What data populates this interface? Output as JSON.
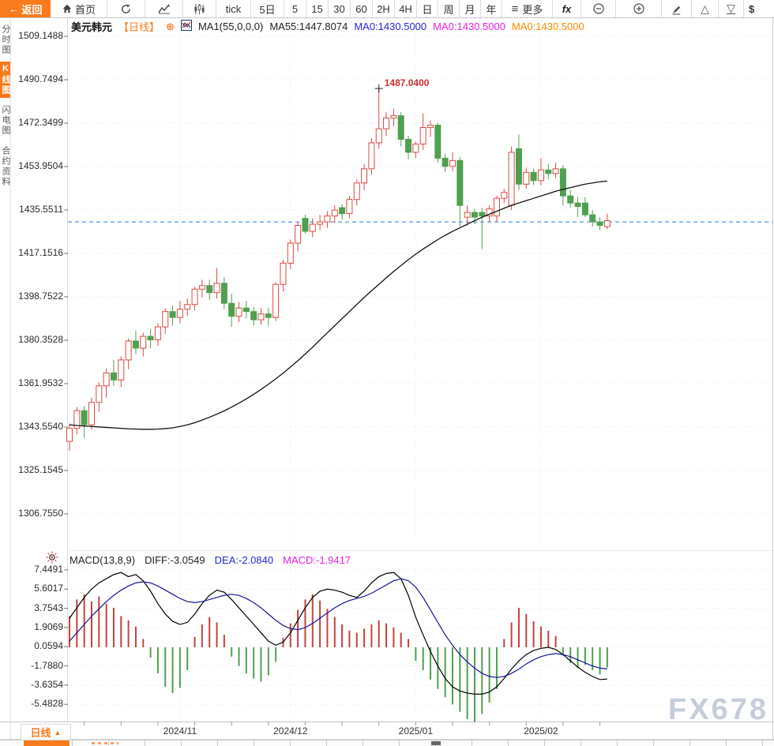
{
  "toolbar": {
    "back": "返回",
    "home": "首页",
    "tick": "tick",
    "d5": "5日",
    "m5": "5",
    "m15": "15",
    "m30": "30",
    "m60": "60",
    "h2": "2H",
    "h4": "4H",
    "day": "日",
    "week": "周",
    "month": "月",
    "year": "年",
    "more": "更多",
    "fx": "fx",
    "dollar": "$"
  },
  "sidebar": {
    "tabs": [
      {
        "label": "分时图",
        "active": false
      },
      {
        "label": "K线图",
        "active": true
      },
      {
        "label": "闪电图",
        "active": false
      },
      {
        "label": "合约资料",
        "active": false
      }
    ]
  },
  "header": {
    "symbol": "美元韩元",
    "period_tag": "【日线】",
    "plus_icon": "⊕",
    "ma1": "MA1(55,0,0,0)",
    "ma55": "MA55:1447.8074",
    "ma0_1": "MA0:1430.5000",
    "ma0_2": "MA0:1430.5000",
    "ma0_3": "MA0:1430.5000"
  },
  "macd_header": {
    "title": "MACD(13,8,9)",
    "diff": "DIFF:-3.0549",
    "dea": "DEA:-2.0840",
    "macd": "MACD:-1.9417"
  },
  "bottom": {
    "period": "日线",
    "arrow": "▲",
    "watermark": "FX678"
  },
  "colors": {
    "accent_orange": "#f87b1e",
    "up_red": "#db4a42",
    "down_green": "#4fa04f",
    "price_line_blue": "#1e82e6",
    "dea_blue": "#16169a",
    "macd_magenta": "#e221e2",
    "ma0_orange": "#ff8a00"
  },
  "chart_data": {
    "type": "candlestick+macd",
    "symbol": "美元韩元",
    "period": "日线",
    "y_axis_labels": [
      "1509.1488",
      "1490.7494",
      "1472.3499",
      "1453.9504",
      "1435.5511",
      "1417.1516",
      "1398.7522",
      "1380.3528",
      "1361.9532",
      "1343.5540",
      "1325.1545",
      "1306.7550"
    ],
    "x_axis_labels": [
      {
        "label": "2024/11",
        "index": 15
      },
      {
        "label": "2024/12",
        "index": 30
      },
      {
        "label": "2025/01",
        "index": 47
      },
      {
        "label": "2025/02",
        "index": 64
      }
    ],
    "current_price_line": 1430.5,
    "annotation": {
      "text": "1487.0400",
      "index": 42,
      "price": 1487.04
    },
    "candles": [
      [
        1337.5,
        1345,
        1333.5,
        1343
      ],
      [
        1343,
        1352,
        1340.5,
        1350.5
      ],
      [
        1350.5,
        1352.5,
        1339,
        1344.5
      ],
      [
        1344.5,
        1356,
        1342.5,
        1354
      ],
      [
        1354,
        1362.5,
        1350,
        1361
      ],
      [
        1361,
        1368.5,
        1356,
        1366.5
      ],
      [
        1366.5,
        1372,
        1361,
        1363.5
      ],
      [
        1363.5,
        1373.5,
        1360.5,
        1372
      ],
      [
        1372,
        1381,
        1368,
        1380
      ],
      [
        1380,
        1384.5,
        1374.5,
        1377
      ],
      [
        1377,
        1383.5,
        1373.5,
        1382
      ],
      [
        1382,
        1385,
        1377,
        1380.5
      ],
      [
        1380.5,
        1387.5,
        1378,
        1386
      ],
      [
        1386,
        1394,
        1383,
        1392.5
      ],
      [
        1392.5,
        1395,
        1386.5,
        1390
      ],
      [
        1390,
        1397,
        1387.5,
        1393.5
      ],
      [
        1393.5,
        1398,
        1390.5,
        1395.5
      ],
      [
        1395.5,
        1403,
        1393,
        1402
      ],
      [
        1402,
        1406,
        1398.5,
        1403.5
      ],
      [
        1403.5,
        1406,
        1397.5,
        1400.5
      ],
      [
        1400.5,
        1411,
        1398,
        1404.5
      ],
      [
        1404.5,
        1407,
        1393.5,
        1396
      ],
      [
        1396,
        1400,
        1386,
        1390.5
      ],
      [
        1390.5,
        1396.5,
        1388,
        1394
      ],
      [
        1394,
        1397,
        1389.5,
        1392.5
      ],
      [
        1392.5,
        1394.5,
        1386.5,
        1389
      ],
      [
        1389,
        1394,
        1387,
        1391.5
      ],
      [
        1391.5,
        1394,
        1386.5,
        1390
      ],
      [
        1390,
        1405,
        1388.5,
        1404
      ],
      [
        1404,
        1414.5,
        1401,
        1413
      ],
      [
        1413,
        1423,
        1410.5,
        1421.5
      ],
      [
        1421.5,
        1430.5,
        1418,
        1429
      ],
      [
        1432,
        1433.5,
        1425.5,
        1426.5
      ],
      [
        1426.5,
        1432,
        1424,
        1429.5
      ],
      [
        1429.5,
        1433.5,
        1427,
        1430.5
      ],
      [
        1430.5,
        1435,
        1428,
        1433
      ],
      [
        1433,
        1437.5,
        1430,
        1435.5
      ],
      [
        1436.5,
        1438,
        1431.5,
        1434
      ],
      [
        1434,
        1441.5,
        1432,
        1440
      ],
      [
        1440,
        1448.5,
        1437.5,
        1447
      ],
      [
        1447,
        1455,
        1444,
        1453
      ],
      [
        1453,
        1466,
        1450.5,
        1464
      ],
      [
        1464,
        1487.04,
        1461.5,
        1470
      ],
      [
        1470,
        1477,
        1467,
        1474.5
      ],
      [
        1474.5,
        1478.5,
        1471,
        1475.5
      ],
      [
        1475.5,
        1477,
        1462.5,
        1465.5
      ],
      [
        1465.5,
        1467,
        1457,
        1460
      ],
      [
        1460,
        1464.5,
        1457.5,
        1463.5
      ],
      [
        1463.5,
        1476.5,
        1461,
        1470.5
      ],
      [
        1470.5,
        1473.5,
        1466.5,
        1471.5
      ],
      [
        1471.5,
        1472.5,
        1455.5,
        1457.5
      ],
      [
        1457.5,
        1459.5,
        1451.5,
        1454
      ],
      [
        1454,
        1460,
        1452,
        1456.5
      ],
      [
        1456.5,
        1458,
        1428.5,
        1437.5
      ],
      [
        1432.5,
        1437.5,
        1429,
        1434.5
      ],
      [
        1434.5,
        1436,
        1429.5,
        1432.5
      ],
      [
        1434.5,
        1436.5,
        1419,
        1433
      ],
      [
        1433,
        1437.5,
        1430.5,
        1436
      ],
      [
        1433,
        1441.5,
        1430.5,
        1440.5
      ],
      [
        1440.5,
        1444.5,
        1438.5,
        1443
      ],
      [
        1437.5,
        1462.5,
        1435.5,
        1460
      ],
      [
        1461.5,
        1467.5,
        1444,
        1446.5
      ],
      [
        1446.5,
        1453.5,
        1444.5,
        1451.5
      ],
      [
        1451.5,
        1453,
        1446,
        1448
      ],
      [
        1448,
        1457.5,
        1446,
        1452.5
      ],
      [
        1452.5,
        1455,
        1448.5,
        1451
      ],
      [
        1451,
        1455.5,
        1449,
        1453
      ],
      [
        1453,
        1454.5,
        1437.5,
        1441.5
      ],
      [
        1441.5,
        1444,
        1436.5,
        1438.5
      ],
      [
        1438.5,
        1441,
        1432.5,
        1437
      ],
      [
        1438.5,
        1441,
        1432.5,
        1433.5
      ],
      [
        1433.5,
        1435.5,
        1428.5,
        1430.5
      ],
      [
        1430.5,
        1432.5,
        1427,
        1429
      ],
      [
        1428.5,
        1434,
        1427.5,
        1431
      ]
    ],
    "ma55": [
      1344.5,
      1344.2,
      1344.0,
      1343.8,
      1343.6,
      1343.4,
      1343.2,
      1343.0,
      1342.8,
      1342.7,
      1342.6,
      1342.6,
      1342.7,
      1342.9,
      1343.2,
      1343.8,
      1344.5,
      1345.4,
      1346.5,
      1347.7,
      1349.0,
      1350.4,
      1352.0,
      1353.7,
      1355.5,
      1357.4,
      1359.5,
      1361.7,
      1364.0,
      1366.4,
      1369.0,
      1371.7,
      1374.5,
      1377.4,
      1380.5,
      1383.5,
      1386.5,
      1389.5,
      1392.5,
      1395.5,
      1398.5,
      1401.3,
      1404.0,
      1406.8,
      1409.5,
      1412.0,
      1414.5,
      1416.8,
      1419.0,
      1421.0,
      1423.0,
      1424.8,
      1426.5,
      1428.0,
      1429.5,
      1431.0,
      1432.5,
      1433.8,
      1435.0,
      1436.3,
      1437.5,
      1438.5,
      1439.5,
      1440.5,
      1441.5,
      1442.5,
      1443.5,
      1444.3,
      1445.0,
      1445.8,
      1446.5,
      1447.0,
      1447.5,
      1447.8
    ],
    "macd": {
      "y_labels": [
        "7.4491",
        "5.6017",
        "3.7543",
        "1.9069",
        "0.0594",
        "-1.7880",
        "-3.6354",
        "-5.4828"
      ],
      "hist": [
        3.0,
        4.6,
        5.1,
        4.4,
        4.9,
        4.2,
        3.8,
        3.0,
        2.6,
        2.0,
        0.8,
        -1.0,
        -2.5,
        -3.8,
        -4.4,
        -3.9,
        -2.2,
        1.0,
        2.2,
        2.9,
        2.4,
        1.2,
        -0.9,
        -1.8,
        -2.5,
        -3.0,
        -3.3,
        -2.7,
        -1.4,
        0.9,
        2.3,
        3.6,
        4.6,
        5.1,
        4.5,
        3.7,
        2.9,
        2.2,
        1.6,
        1.4,
        1.8,
        2.2,
        2.6,
        2.3,
        1.9,
        1.4,
        0.8,
        -1.3,
        -2.2,
        -3.1,
        -4.0,
        -4.8,
        -5.5,
        -6.2,
        -6.9,
        -7.2,
        -6.4,
        -5.3,
        -4.0,
        0.8,
        2.4,
        3.8,
        3.2,
        2.5,
        2.0,
        1.6,
        1.1,
        -0.8,
        -1.5,
        -2.0,
        -1.7,
        -2.2,
        -2.6,
        -1.94
      ],
      "diff": [
        2.8,
        3.8,
        4.8,
        5.6,
        6.2,
        6.6,
        7.0,
        7.2,
        6.8,
        7.0,
        6.4,
        5.4,
        4.2,
        3.2,
        2.5,
        2.2,
        2.4,
        3.2,
        4.2,
        5.0,
        5.5,
        5.3,
        4.6,
        3.8,
        3.0,
        2.2,
        1.4,
        0.6,
        0.2,
        0.5,
        1.4,
        2.6,
        3.8,
        4.8,
        5.4,
        5.6,
        5.5,
        5.3,
        5.0,
        4.8,
        5.4,
        6.2,
        6.8,
        7.1,
        7.2,
        6.6,
        5.0,
        2.9,
        1.2,
        -0.4,
        -1.8,
        -3.0,
        -3.8,
        -4.2,
        -4.4,
        -4.5,
        -4.5,
        -4.3,
        -3.8,
        -3.0,
        -2.1,
        -1.3,
        -0.7,
        -0.3,
        -0.1,
        0.0,
        -0.2,
        -0.7,
        -1.3,
        -1.9,
        -2.4,
        -2.8,
        -3.1,
        -3.05
      ],
      "dea": [
        0.6,
        1.4,
        2.2,
        3.0,
        3.7,
        4.4,
        5.0,
        5.5,
        5.9,
        6.2,
        6.3,
        6.2,
        5.9,
        5.5,
        5.1,
        4.7,
        4.4,
        4.3,
        4.4,
        4.6,
        4.8,
        5.0,
        5.1,
        5.0,
        4.7,
        4.3,
        3.8,
        3.2,
        2.6,
        2.1,
        1.8,
        1.7,
        1.9,
        2.3,
        2.8,
        3.3,
        3.8,
        4.2,
        4.5,
        4.7,
        4.9,
        5.2,
        5.6,
        6.0,
        6.4,
        6.6,
        6.4,
        5.8,
        4.8,
        3.6,
        2.4,
        1.2,
        0.2,
        -0.7,
        -1.4,
        -2.0,
        -2.5,
        -2.8,
        -2.9,
        -2.8,
        -2.5,
        -2.1,
        -1.6,
        -1.2,
        -0.9,
        -0.7,
        -0.6,
        -0.7,
        -0.9,
        -1.2,
        -1.5,
        -1.8,
        -2.0,
        -2.08
      ]
    }
  }
}
